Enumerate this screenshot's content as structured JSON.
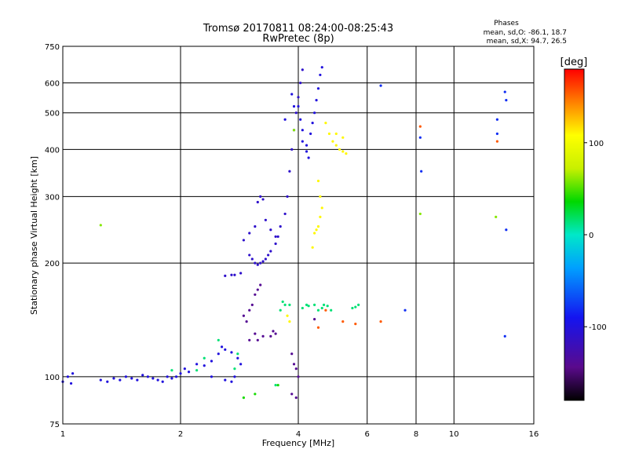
{
  "chart_data": {
    "type": "scatter",
    "title": "Tromsø 20170811 08:24:00-08:25:43",
    "subtitle": "RwPretec (8p)",
    "xlabel": "Frequency [MHz]",
    "ylabel": "Stationary phase Virtual Height [km]",
    "xscale": "log",
    "yscale": "log",
    "xlim": [
      1,
      16
    ],
    "ylim": [
      75,
      750
    ],
    "x_ticks": [
      1,
      2,
      4,
      6,
      8,
      10,
      16
    ],
    "y_ticks": [
      75,
      100,
      200,
      300,
      400,
      500,
      600,
      750
    ],
    "x_tick_labels": [
      "1",
      "2",
      "4",
      "6",
      "8",
      "10",
      "16"
    ],
    "y_tick_labels": [
      "75",
      "100",
      "200",
      "300",
      "400",
      "500",
      "600",
      "750"
    ],
    "grid_x": [
      2,
      4,
      6,
      8,
      10
    ],
    "grid_y": [
      100,
      200,
      300,
      400,
      500,
      600
    ],
    "phases_note": {
      "title": "Phases",
      "line1": "mean, sd,O: -86.1, 18.7",
      "line2": "mean, sd,X:  94.7, 26.5"
    },
    "colorbar": {
      "label": "[deg]",
      "min": -180,
      "max": 180,
      "ticks": [
        100,
        0,
        -100
      ],
      "tick_labels": [
        "100",
        "0",
        "-100"
      ]
    },
    "series": [
      {
        "phase": -100,
        "points": [
          [
            1.0,
            97
          ],
          [
            1.03,
            100
          ],
          [
            1.05,
            96
          ],
          [
            1.06,
            102
          ],
          [
            1.25,
            98
          ],
          [
            1.3,
            97
          ],
          [
            1.35,
            99
          ],
          [
            1.4,
            98
          ],
          [
            1.45,
            100
          ],
          [
            1.5,
            99
          ],
          [
            1.55,
            98
          ],
          [
            1.6,
            101
          ],
          [
            1.65,
            100
          ],
          [
            1.7,
            99
          ],
          [
            1.75,
            98
          ],
          [
            1.8,
            97
          ],
          [
            1.85,
            100
          ],
          [
            1.9,
            99
          ],
          [
            1.95,
            100
          ],
          [
            2.0,
            102
          ],
          [
            2.05,
            105
          ],
          [
            2.1,
            103
          ],
          [
            2.2,
            108
          ],
          [
            2.3,
            107
          ],
          [
            2.4,
            110
          ],
          [
            2.5,
            115
          ],
          [
            2.55,
            120
          ],
          [
            2.6,
            118
          ],
          [
            2.7,
            116
          ],
          [
            2.8,
            112
          ],
          [
            2.85,
            108
          ],
          [
            2.4,
            100
          ],
          [
            2.6,
            98
          ],
          [
            2.7,
            97
          ],
          [
            2.75,
            100
          ]
        ]
      },
      {
        "phase": -110,
        "points": [
          [
            2.6,
            185
          ],
          [
            2.7,
            186
          ],
          [
            2.75,
            186
          ],
          [
            2.85,
            188
          ],
          [
            2.9,
            230
          ],
          [
            3.0,
            210
          ],
          [
            3.05,
            205
          ],
          [
            3.1,
            200
          ],
          [
            3.15,
            198
          ],
          [
            3.2,
            200
          ],
          [
            3.25,
            202
          ],
          [
            3.3,
            205
          ],
          [
            3.35,
            210
          ],
          [
            3.4,
            215
          ],
          [
            3.5,
            225
          ],
          [
            3.55,
            235
          ],
          [
            3.6,
            250
          ],
          [
            3.7,
            270
          ],
          [
            3.75,
            300
          ],
          [
            3.8,
            350
          ],
          [
            3.85,
            400
          ],
          [
            3.9,
            450
          ],
          [
            3.95,
            500
          ],
          [
            4.0,
            550
          ],
          [
            4.05,
            600
          ],
          [
            4.1,
            650
          ],
          [
            3.0,
            240
          ],
          [
            3.1,
            250
          ],
          [
            3.15,
            290
          ],
          [
            3.2,
            300
          ],
          [
            3.25,
            295
          ],
          [
            3.3,
            260
          ],
          [
            3.4,
            245
          ],
          [
            3.5,
            235
          ]
        ]
      },
      {
        "phase": -100,
        "points": [
          [
            4.1,
            420
          ],
          [
            4.2,
            410
          ],
          [
            4.3,
            440
          ],
          [
            4.35,
            470
          ],
          [
            4.4,
            500
          ],
          [
            4.45,
            540
          ],
          [
            4.5,
            580
          ],
          [
            4.55,
            630
          ],
          [
            4.6,
            660
          ],
          [
            4.2,
            395
          ],
          [
            4.25,
            380
          ],
          [
            4.1,
            450
          ],
          [
            4.05,
            480
          ],
          [
            4.0,
            520
          ],
          [
            3.9,
            520
          ],
          [
            3.85,
            560
          ],
          [
            3.7,
            480
          ]
        ]
      },
      {
        "phase": -140,
        "points": [
          [
            2.9,
            145
          ],
          [
            2.95,
            140
          ],
          [
            3.0,
            150
          ],
          [
            3.05,
            155
          ],
          [
            3.1,
            165
          ],
          [
            3.15,
            170
          ],
          [
            3.2,
            175
          ],
          [
            3.1,
            130
          ],
          [
            3.0,
            125
          ],
          [
            3.15,
            125
          ],
          [
            3.25,
            128
          ],
          [
            3.4,
            128
          ],
          [
            3.45,
            132
          ],
          [
            3.5,
            130
          ],
          [
            3.85,
            115
          ],
          [
            3.9,
            108
          ],
          [
            3.95,
            105
          ],
          [
            4.0,
            100
          ],
          [
            3.85,
            90
          ],
          [
            3.95,
            88
          ],
          [
            4.4,
            142
          ]
        ]
      },
      {
        "phase": 15,
        "points": [
          [
            3.6,
            150
          ],
          [
            3.65,
            158
          ],
          [
            3.7,
            155
          ],
          [
            3.8,
            155
          ],
          [
            4.1,
            152
          ],
          [
            4.2,
            155
          ],
          [
            4.25,
            154
          ],
          [
            4.4,
            155
          ],
          [
            4.5,
            150
          ],
          [
            4.6,
            152
          ],
          [
            4.65,
            155
          ],
          [
            4.75,
            154
          ],
          [
            4.85,
            150
          ],
          [
            5.5,
            152
          ],
          [
            5.6,
            153
          ],
          [
            5.7,
            155
          ],
          [
            1.9,
            104
          ],
          [
            2.2,
            104
          ],
          [
            2.75,
            105
          ],
          [
            2.8,
            115
          ],
          [
            2.3,
            112
          ],
          [
            2.5,
            125
          ],
          [
            3.5,
            95
          ]
        ]
      },
      {
        "phase": 110,
        "points": [
          [
            4.7,
            470
          ],
          [
            4.8,
            440
          ],
          [
            4.9,
            420
          ],
          [
            5.0,
            410
          ],
          [
            5.1,
            400
          ],
          [
            5.2,
            395
          ],
          [
            5.3,
            390
          ],
          [
            5.2,
            430
          ],
          [
            5.0,
            440
          ],
          [
            4.5,
            330
          ],
          [
            4.55,
            300
          ],
          [
            4.6,
            280
          ],
          [
            4.55,
            265
          ],
          [
            4.5,
            250
          ],
          [
            4.45,
            245
          ],
          [
            4.4,
            240
          ],
          [
            4.35,
            220
          ],
          [
            3.75,
            145
          ],
          [
            3.8,
            140
          ]
        ]
      },
      {
        "phase": 155,
        "points": [
          [
            4.5,
            135
          ],
          [
            4.7,
            150
          ],
          [
            5.2,
            140
          ],
          [
            5.6,
            138
          ],
          [
            8.2,
            460
          ],
          [
            12.9,
            420
          ],
          [
            6.5,
            140
          ]
        ]
      },
      {
        "phase": 60,
        "points": [
          [
            1.25,
            252
          ],
          [
            8.2,
            270
          ],
          [
            12.8,
            265
          ],
          [
            3.9,
            450
          ]
        ]
      },
      {
        "phase": -80,
        "points": [
          [
            7.5,
            150
          ],
          [
            8.2,
            430
          ],
          [
            8.25,
            350
          ],
          [
            6.5,
            590
          ],
          [
            12.9,
            480
          ],
          [
            12.9,
            440
          ],
          [
            13.5,
            568
          ],
          [
            13.6,
            540
          ],
          [
            13.6,
            245
          ],
          [
            13.5,
            128
          ]
        ]
      },
      {
        "phase": 40,
        "points": [
          [
            2.9,
            88
          ],
          [
            3.1,
            90
          ],
          [
            3.55,
            95
          ]
        ]
      }
    ]
  }
}
